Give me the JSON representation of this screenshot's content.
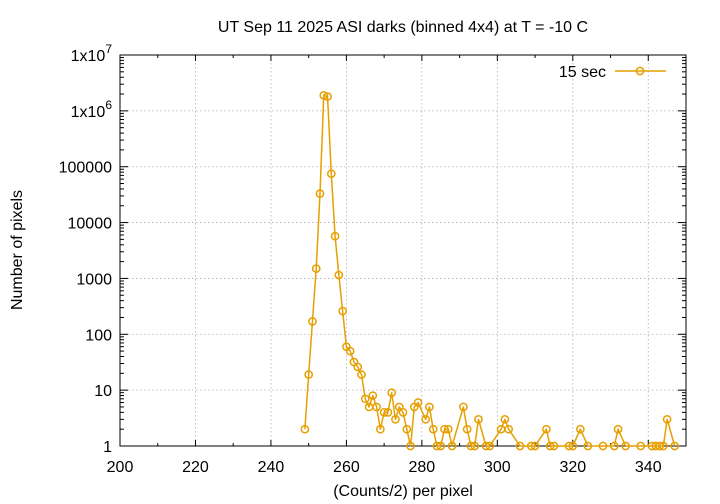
{
  "chart_data": {
    "type": "line",
    "title": "UT Sep 11 2025 ASI darks (binned 4x4) at T = -10 C",
    "xlabel": "(Counts/2) per pixel",
    "ylabel": "Number of pixels",
    "xlim": [
      200,
      350
    ],
    "ylim": [
      1,
      10000000
    ],
    "yscale": "log",
    "grid": true,
    "legend_position": "top-right",
    "color": "#e69f00",
    "x_ticks": [
      "200",
      "220",
      "240",
      "260",
      "280",
      "300",
      "320",
      "340"
    ],
    "y_ticks": [
      "1",
      "10",
      "100",
      "1000",
      "10000",
      "100000",
      "1x10^6",
      "1x10^7"
    ],
    "series": [
      {
        "name": "15 sec",
        "points": [
          [
            249,
            2
          ],
          [
            250,
            19
          ],
          [
            251,
            170
          ],
          [
            252,
            1500
          ],
          [
            253,
            33000
          ],
          [
            254,
            1900000
          ],
          [
            255,
            1800000
          ],
          [
            256,
            75000
          ],
          [
            257,
            5700
          ],
          [
            258,
            1150
          ],
          [
            259,
            260
          ],
          [
            260,
            60
          ],
          [
            261,
            50
          ],
          [
            262,
            32
          ],
          [
            263,
            26
          ],
          [
            264,
            19
          ],
          [
            265,
            7
          ],
          [
            266,
            5
          ],
          [
            267,
            8
          ],
          [
            268,
            5
          ],
          [
            269,
            2
          ],
          [
            270,
            4
          ],
          [
            271,
            4
          ],
          [
            272,
            9
          ],
          [
            273,
            3
          ],
          [
            274,
            5
          ],
          [
            275,
            4
          ],
          [
            276,
            2
          ],
          [
            277,
            1
          ],
          [
            278,
            5
          ],
          [
            279,
            6
          ],
          [
            281,
            3
          ],
          [
            282,
            5
          ],
          [
            283,
            2
          ],
          [
            284,
            1
          ],
          [
            285,
            1
          ],
          [
            286,
            2
          ],
          [
            287,
            2
          ],
          [
            288,
            1
          ],
          [
            291,
            5
          ],
          [
            292,
            2
          ],
          [
            293,
            1
          ],
          [
            294,
            1
          ],
          [
            295,
            3
          ],
          [
            297,
            1
          ],
          [
            298,
            1
          ],
          [
            301,
            2
          ],
          [
            302,
            3
          ],
          [
            303,
            2
          ],
          [
            306,
            1
          ],
          [
            309,
            1
          ],
          [
            310,
            1
          ],
          [
            313,
            2
          ],
          [
            314,
            1
          ],
          [
            315,
            1
          ],
          [
            319,
            1
          ],
          [
            320,
            1
          ],
          [
            322,
            2
          ],
          [
            324,
            1
          ],
          [
            328,
            1
          ],
          [
            331,
            1
          ],
          [
            332,
            2
          ],
          [
            334,
            1
          ],
          [
            338,
            1
          ],
          [
            341,
            1
          ],
          [
            342,
            1
          ],
          [
            343,
            1
          ],
          [
            344,
            1
          ],
          [
            345,
            3
          ],
          [
            347,
            1
          ]
        ]
      }
    ]
  }
}
